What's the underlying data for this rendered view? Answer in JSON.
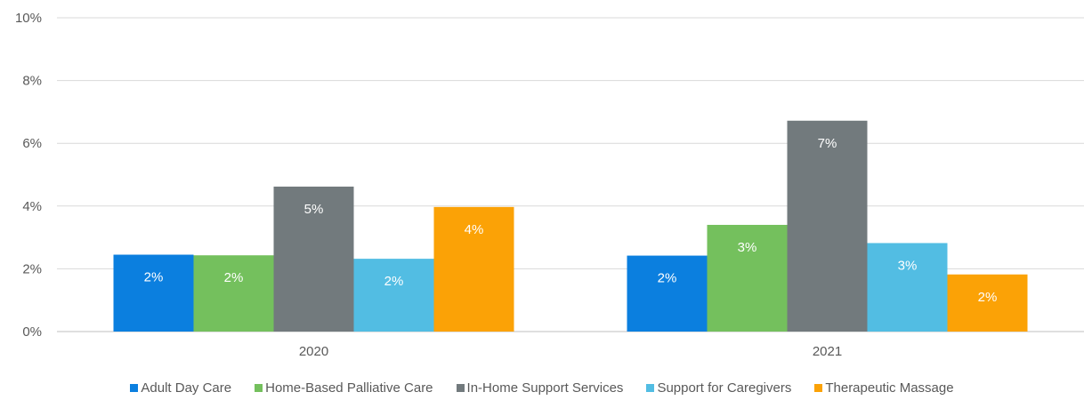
{
  "chart_data": {
    "type": "bar",
    "categories": [
      "2020",
      "2021"
    ],
    "series": [
      {
        "name": "Adult Day Care",
        "color": "#0b7fdf",
        "values": [
          2.45,
          2.42
        ],
        "labels": [
          "2%",
          "2%"
        ]
      },
      {
        "name": "Home-Based Palliative Care",
        "color": "#74c05d",
        "values": [
          2.43,
          3.4
        ],
        "labels": [
          "2%",
          "3%"
        ]
      },
      {
        "name": "In-Home Support Services",
        "color": "#727a7d",
        "values": [
          4.62,
          6.72
        ],
        "labels": [
          "5%",
          "7%"
        ]
      },
      {
        "name": "Support for Caregivers",
        "color": "#52bde3",
        "values": [
          2.32,
          2.82
        ],
        "labels": [
          "2%",
          "3%"
        ]
      },
      {
        "name": "Therapeutic Massage",
        "color": "#fba206",
        "values": [
          3.97,
          1.82
        ],
        "labels": [
          "4%",
          "2%"
        ]
      }
    ],
    "y_ticks": [
      "0%",
      "2%",
      "4%",
      "6%",
      "8%",
      "10%"
    ],
    "ylim": [
      0,
      10
    ],
    "grid": true,
    "legend_position": "bottom",
    "title": "",
    "xlabel": "",
    "ylabel": ""
  }
}
